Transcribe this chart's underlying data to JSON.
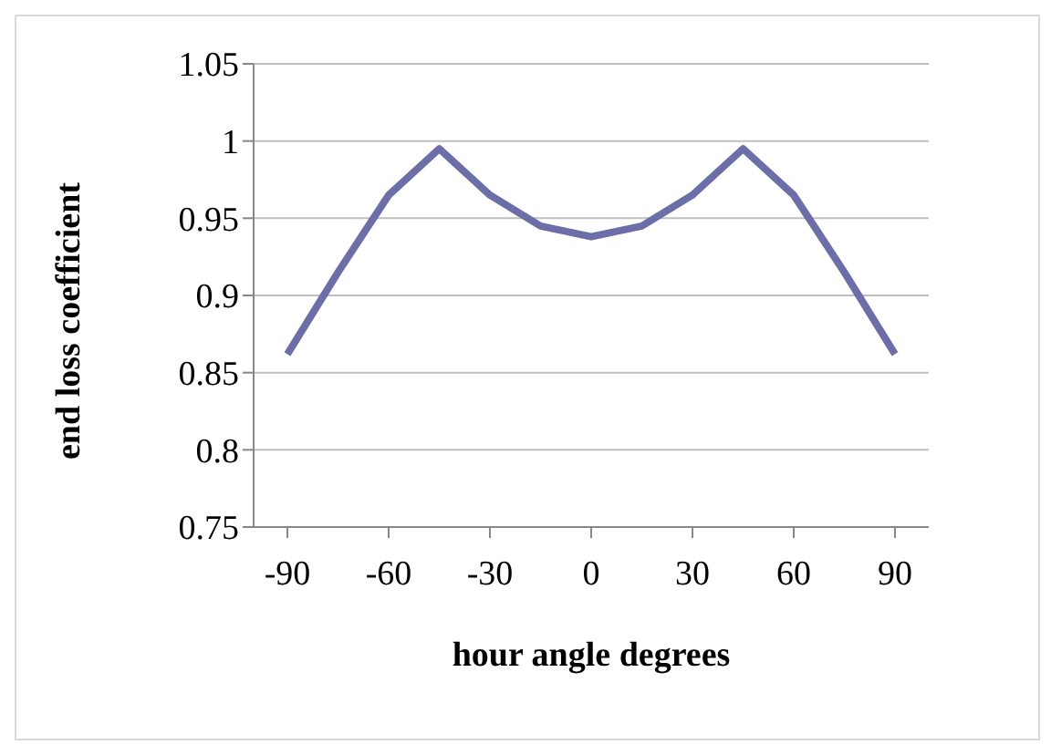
{
  "chart_data": {
    "type": "line",
    "xlabel": "hour angle degrees",
    "ylabel": "end loss coefficient",
    "x": [
      -90,
      -75,
      -60,
      -45,
      -30,
      -15,
      0,
      15,
      30,
      45,
      60,
      75,
      90
    ],
    "series": [
      {
        "color": "#6b6ea8",
        "values": [
          0.862,
          0.915,
          0.965,
          0.995,
          0.965,
          0.945,
          0.938,
          0.945,
          0.965,
          0.995,
          0.965,
          0.915,
          0.862
        ]
      }
    ],
    "xlim": [
      -100,
      100
    ],
    "xticks": [
      -90,
      -60,
      -30,
      0,
      30,
      60,
      90
    ],
    "ylim": [
      0.75,
      1.05
    ],
    "yticks": [
      0.75,
      0.8,
      0.85,
      0.9,
      0.95,
      1,
      1.05
    ],
    "grid": "y",
    "legend": false,
    "marker": "none",
    "line_style": "solid"
  }
}
